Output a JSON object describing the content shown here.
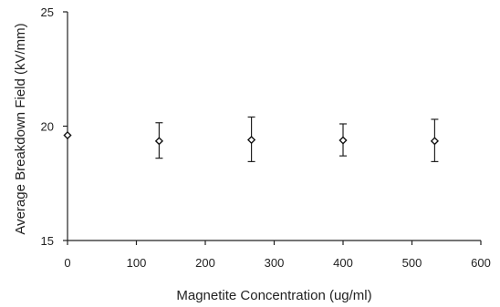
{
  "chart_data": {
    "type": "scatter",
    "title": "",
    "xlabel": "Magnetite Concentration (ug/ml)",
    "ylabel": "Average Breakdown Field (kV/mm)",
    "xlim": [
      0,
      600
    ],
    "ylim": [
      15,
      25
    ],
    "xticks": [
      0,
      100,
      200,
      300,
      400,
      500,
      600
    ],
    "yticks": [
      15,
      20,
      25
    ],
    "grid": false,
    "legend": "none",
    "colors": {
      "marker": "#111111",
      "axis": "#222222"
    },
    "series": [
      {
        "points": [
          {
            "x": 0,
            "y": 19.6,
            "err_low": null,
            "err_high": null
          },
          {
            "x": 133,
            "y": 19.35,
            "err_low": 18.6,
            "err_high": 20.15
          },
          {
            "x": 267,
            "y": 19.4,
            "err_low": 18.45,
            "err_high": 20.4
          },
          {
            "x": 400,
            "y": 19.38,
            "err_low": 18.7,
            "err_high": 20.1
          },
          {
            "x": 533,
            "y": 19.35,
            "err_low": 18.45,
            "err_high": 20.3
          }
        ]
      }
    ]
  }
}
